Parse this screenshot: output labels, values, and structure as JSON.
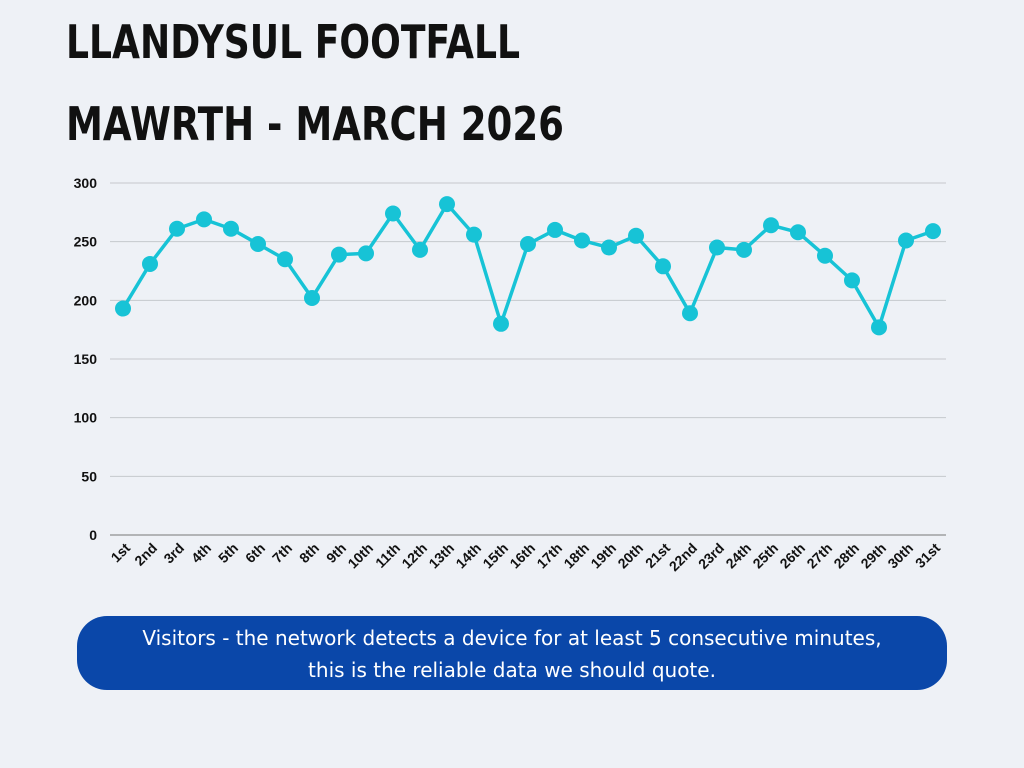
{
  "chart_data": {
    "type": "line",
    "title": "LLANDYSUL FOOTFALL",
    "subtitle": "MAWRTH - MARCH 2026",
    "categories": [
      "1st",
      "2nd",
      "3rd",
      "4th",
      "5th",
      "6th",
      "7th",
      "8th",
      "9th",
      "10th",
      "11th",
      "12th",
      "13th",
      "14th",
      "15th",
      "16th",
      "17th",
      "18th",
      "19th",
      "20th",
      "21st",
      "22nd",
      "23rd",
      "24th",
      "25th",
      "26th",
      "27th",
      "28th",
      "29th",
      "30th",
      "31st"
    ],
    "values": [
      193,
      231,
      261,
      269,
      261,
      248,
      235,
      202,
      239,
      240,
      274,
      243,
      282,
      256,
      180,
      248,
      260,
      251,
      245,
      255,
      229,
      189,
      245,
      243,
      264,
      258,
      238,
      217,
      177,
      251,
      259
    ],
    "color": "#17c3d6",
    "ylim": [
      0,
      300
    ],
    "yticks": [
      0,
      50,
      100,
      150,
      200,
      250,
      300
    ],
    "grid": true,
    "note": [
      "Visitors - the network detects a device for at least 5 consecutive minutes,",
      "this is the reliable data we should quote."
    ]
  }
}
